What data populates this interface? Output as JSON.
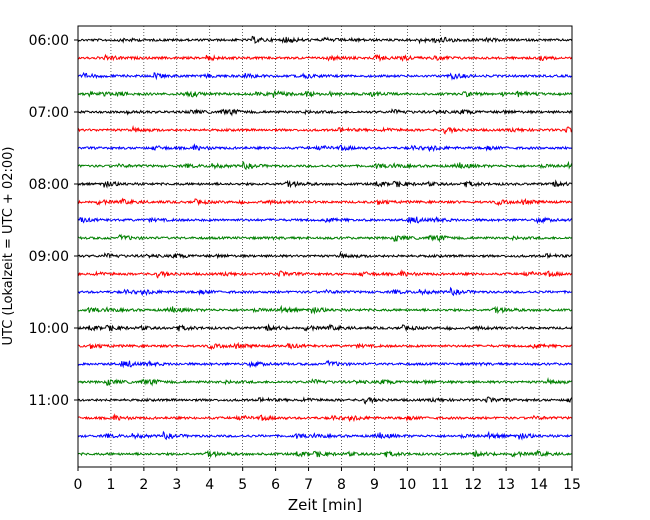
{
  "chart_data": {
    "type": "line",
    "title": "",
    "xlabel": "Zeit  [min]",
    "ylabel": "UTC (Lokalzeit = UTC + 02:00)",
    "xlim": [
      0,
      15
    ],
    "x_ticks": [
      "0",
      "1",
      "2",
      "3",
      "4",
      "5",
      "6",
      "7",
      "8",
      "9",
      "10",
      "11",
      "12",
      "13",
      "14",
      "15"
    ],
    "grid": "vertical dotted",
    "y_tick_labels": [
      "06:00",
      "07:00",
      "08:00",
      "09:00",
      "10:00",
      "11:00"
    ],
    "trace_interval_minutes": 15,
    "color_cycle": [
      "#000000",
      "#ff0000",
      "#0000ff",
      "#008000"
    ],
    "traces": [
      {
        "start": "06:00",
        "color": "#000000"
      },
      {
        "start": "06:15",
        "color": "#ff0000"
      },
      {
        "start": "06:30",
        "color": "#0000ff"
      },
      {
        "start": "06:45",
        "color": "#008000"
      },
      {
        "start": "07:00",
        "color": "#000000"
      },
      {
        "start": "07:15",
        "color": "#ff0000"
      },
      {
        "start": "07:30",
        "color": "#0000ff"
      },
      {
        "start": "07:45",
        "color": "#008000"
      },
      {
        "start": "08:00",
        "color": "#000000"
      },
      {
        "start": "08:15",
        "color": "#ff0000"
      },
      {
        "start": "08:30",
        "color": "#0000ff"
      },
      {
        "start": "08:45",
        "color": "#008000"
      },
      {
        "start": "09:00",
        "color": "#000000"
      },
      {
        "start": "09:15",
        "color": "#ff0000"
      },
      {
        "start": "09:30",
        "color": "#0000ff"
      },
      {
        "start": "09:45",
        "color": "#008000"
      },
      {
        "start": "10:00",
        "color": "#000000"
      },
      {
        "start": "10:15",
        "color": "#ff0000"
      },
      {
        "start": "10:30",
        "color": "#0000ff"
      },
      {
        "start": "10:45",
        "color": "#008000"
      },
      {
        "start": "11:00",
        "color": "#000000"
      },
      {
        "start": "11:15",
        "color": "#ff0000"
      },
      {
        "start": "11:30",
        "color": "#0000ff"
      },
      {
        "start": "11:45",
        "color": "#008000"
      }
    ]
  }
}
